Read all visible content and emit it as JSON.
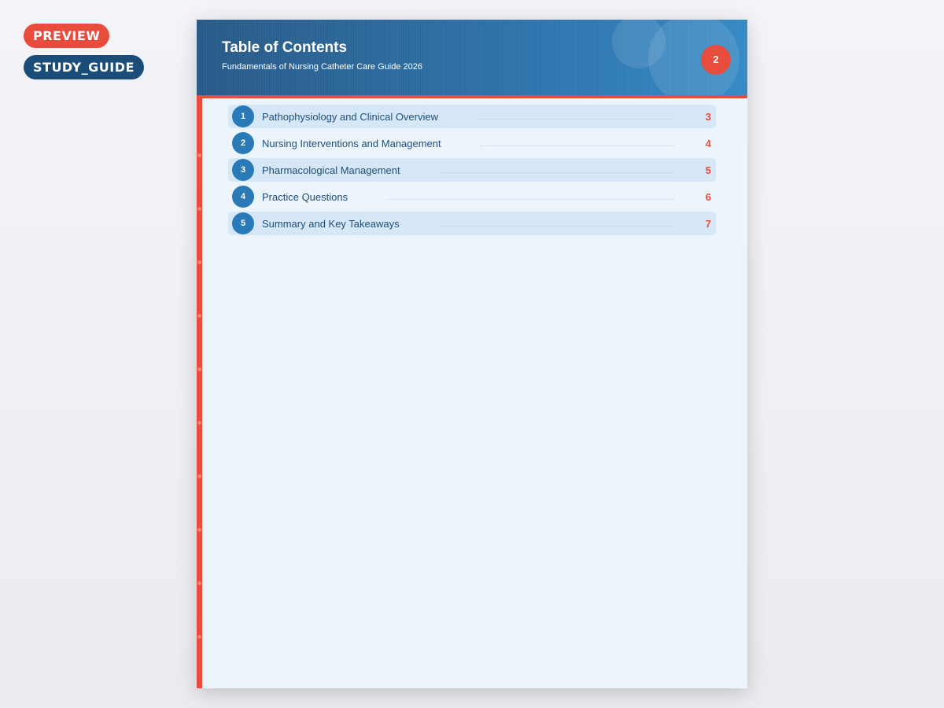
{
  "badges": {
    "preview": "PREVIEW",
    "type": "STUDY_GUIDE"
  },
  "header": {
    "title": "Table of Contents",
    "subtitle": "Fundamentals of Nursing Catheter Care Guide 2026",
    "page_number": "2"
  },
  "toc": [
    {
      "num": "1",
      "label": "Pathophysiology and Clinical Overview",
      "page": "3"
    },
    {
      "num": "2",
      "label": "Nursing Interventions and Management",
      "page": "4"
    },
    {
      "num": "3",
      "label": "Pharmacological Management",
      "page": "5"
    },
    {
      "num": "4",
      "label": "Practice Questions",
      "page": "6"
    },
    {
      "num": "5",
      "label": "Summary and Key Takeaways",
      "page": "7"
    }
  ],
  "colors": {
    "accent": "#e84c3d",
    "primary": "#2a7ab8",
    "text": "#1f4e79"
  }
}
